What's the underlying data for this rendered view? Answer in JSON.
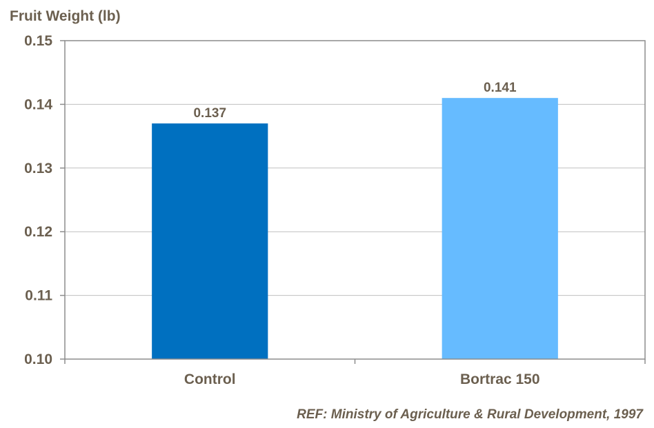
{
  "chart_data": {
    "type": "bar",
    "title": "",
    "ylabel": "Fruit Weight (lb)",
    "xlabel": "",
    "categories": [
      "Control",
      "Bortrac 150"
    ],
    "values": [
      0.137,
      0.141
    ],
    "data_labels": [
      "0.137",
      "0.141"
    ],
    "bar_colors": [
      "#0070c0",
      "#66bbff"
    ],
    "ylim": [
      0.1,
      0.15
    ],
    "yticks": [
      0.1,
      0.11,
      0.12,
      0.13,
      0.14,
      0.15
    ],
    "ytick_labels": [
      "0.10",
      "0.11",
      "0.12",
      "0.13",
      "0.14",
      "0.15"
    ],
    "grid": true,
    "legend": "none"
  },
  "footnote": "REF: Ministry of Agriculture & Rural Development, 1997",
  "colors": {
    "text": "#6b5f4f",
    "axis": "#8c8c8c",
    "grid": "#bfbfbf"
  }
}
